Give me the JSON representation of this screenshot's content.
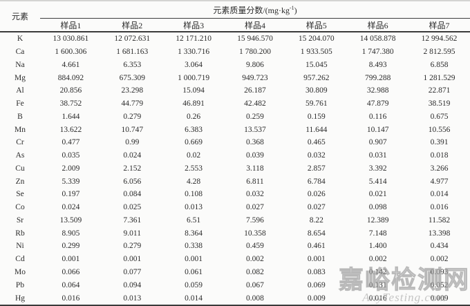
{
  "table": {
    "corner_header": "元素",
    "span_header": {
      "prefix": "元素质量分数/(mg·kg",
      "sup": "-1",
      "suffix": ")"
    },
    "sample_headers": [
      "样品1",
      "样品2",
      "样品3",
      "样品4",
      "样品5",
      "样品6",
      "样品7"
    ],
    "rows": [
      {
        "element": "K",
        "values": [
          "13 030.861",
          "12 072.631",
          "12 171.210",
          "15 946.570",
          "15 204.070",
          "14 058.878",
          "12 994.562"
        ]
      },
      {
        "element": "Ca",
        "values": [
          "1 600.306",
          "1 681.163",
          "1 330.716",
          "1 780.200",
          "1 933.505",
          "1 747.380",
          "2 812.595"
        ]
      },
      {
        "element": "Na",
        "values": [
          "4.661",
          "6.353",
          "3.064",
          "9.806",
          "15.045",
          "8.493",
          "6.858"
        ]
      },
      {
        "element": "Mg",
        "values": [
          "884.092",
          "675.309",
          "1 000.719",
          "949.723",
          "957.262",
          "799.288",
          "1 281.529"
        ]
      },
      {
        "element": "Al",
        "values": [
          "20.856",
          "23.298",
          "15.094",
          "26.187",
          "30.809",
          "32.988",
          "22.871"
        ]
      },
      {
        "element": "Fe",
        "values": [
          "38.752",
          "44.779",
          "46.891",
          "42.482",
          "59.761",
          "47.879",
          "38.519"
        ]
      },
      {
        "element": "B",
        "values": [
          "1.644",
          "0.279",
          "0.26",
          "0.259",
          "0.159",
          "0.116",
          "0.675"
        ]
      },
      {
        "element": "Mn",
        "values": [
          "13.622",
          "10.747",
          "6.383",
          "13.537",
          "11.644",
          "10.147",
          "10.556"
        ]
      },
      {
        "element": "Cr",
        "values": [
          "0.477",
          "0.99",
          "0.669",
          "0.368",
          "0.465",
          "0.907",
          "0.391"
        ]
      },
      {
        "element": "As",
        "values": [
          "0.035",
          "0.024",
          "0.02",
          "0.039",
          "0.032",
          "0.031",
          "0.018"
        ]
      },
      {
        "element": "Cu",
        "values": [
          "2.009",
          "2.152",
          "2.553",
          "3.118",
          "2.857",
          "3.392",
          "3.266"
        ]
      },
      {
        "element": "Zn",
        "values": [
          "5.339",
          "6.056",
          "4.28",
          "6.811",
          "6.784",
          "5.414",
          "4.977"
        ]
      },
      {
        "element": "Se",
        "values": [
          "0.197",
          "0.084",
          "0.108",
          "0.032",
          "0.026",
          "0.021",
          "0.014"
        ]
      },
      {
        "element": "Co",
        "values": [
          "0.024",
          "0.025",
          "0.013",
          "0.027",
          "0.027",
          "0.098",
          "0.016"
        ]
      },
      {
        "element": "Sr",
        "values": [
          "13.509",
          "7.361",
          "6.51",
          "7.596",
          "8.22",
          "12.389",
          "11.582"
        ]
      },
      {
        "element": "Rb",
        "values": [
          "8.905",
          "9.011",
          "8.364",
          "10.358",
          "8.654",
          "7.148",
          "13.398"
        ]
      },
      {
        "element": "Ni",
        "values": [
          "0.299",
          "0.279",
          "0.338",
          "0.459",
          "0.461",
          "1.400",
          "0.434"
        ]
      },
      {
        "element": "Cd",
        "values": [
          "0.001",
          "0.001",
          "0.001",
          "0.002",
          "0.001",
          "0.002",
          "0.002"
        ]
      },
      {
        "element": "Mo",
        "values": [
          "0.066",
          "0.077",
          "0.061",
          "0.082",
          "0.083",
          "0.142",
          "0.093"
        ]
      },
      {
        "element": "Pb",
        "values": [
          "0.064",
          "0.094",
          "0.059",
          "0.067",
          "0.069",
          "0.131",
          "0.052"
        ]
      },
      {
        "element": "Hg",
        "values": [
          "0.016",
          "0.013",
          "0.014",
          "0.008",
          "0.009",
          "0.016",
          "0.009"
        ]
      }
    ]
  },
  "watermark": {
    "cn": "嘉峪检测网",
    "en": "AnyTesting.com"
  }
}
